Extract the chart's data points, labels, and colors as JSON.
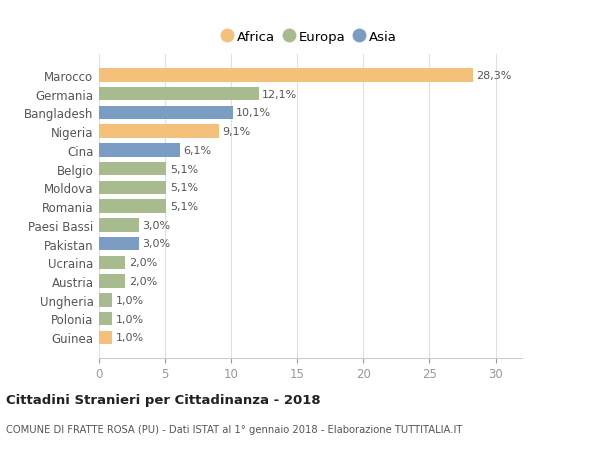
{
  "categories": [
    "Guinea",
    "Polonia",
    "Ungheria",
    "Austria",
    "Ucraina",
    "Pakistan",
    "Paesi Bassi",
    "Romania",
    "Moldova",
    "Belgio",
    "Cina",
    "Nigeria",
    "Bangladesh",
    "Germania",
    "Marocco"
  ],
  "values": [
    1.0,
    1.0,
    1.0,
    2.0,
    2.0,
    3.0,
    3.0,
    5.1,
    5.1,
    5.1,
    6.1,
    9.1,
    10.1,
    12.1,
    28.3
  ],
  "continents": [
    "Africa",
    "Europa",
    "Europa",
    "Europa",
    "Europa",
    "Asia",
    "Europa",
    "Europa",
    "Europa",
    "Europa",
    "Asia",
    "Africa",
    "Asia",
    "Europa",
    "Africa"
  ],
  "colors": {
    "Africa": "#F4C07A",
    "Europa": "#A8BB8E",
    "Asia": "#7B9DC4"
  },
  "labels": [
    "1,0%",
    "1,0%",
    "1,0%",
    "2,0%",
    "2,0%",
    "3,0%",
    "3,0%",
    "5,1%",
    "5,1%",
    "5,1%",
    "6,1%",
    "9,1%",
    "10,1%",
    "12,1%",
    "28,3%"
  ],
  "legend_items": [
    {
      "label": "Africa",
      "color": "#F4C07A"
    },
    {
      "label": "Europa",
      "color": "#A8BB8E"
    },
    {
      "label": "Asia",
      "color": "#7B9DC4"
    }
  ],
  "title": "Cittadini Stranieri per Cittadinanza - 2018",
  "subtitle": "COMUNE DI FRATTE ROSA (PU) - Dati ISTAT al 1° gennaio 2018 - Elaborazione TUTTITALIA.IT",
  "xlim": [
    0,
    32
  ],
  "xticks": [
    0,
    5,
    10,
    15,
    20,
    25,
    30
  ],
  "background_color": "#ffffff",
  "bar_height": 0.72,
  "label_fontsize": 8.0,
  "tick_fontsize": 8.5,
  "ylabel_fontsize": 8.5
}
